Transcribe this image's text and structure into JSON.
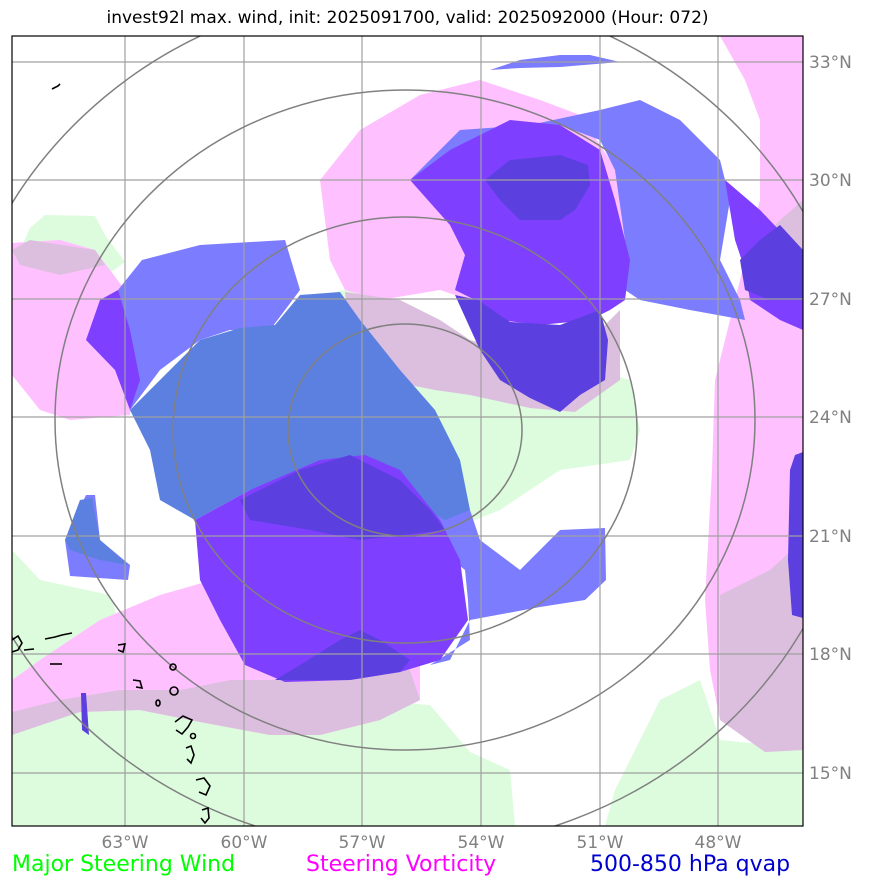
{
  "title": "invest92l max. wind, init: 2025091700, valid: 2025092000 (Hour: 072)",
  "map": {
    "lat_labels": [
      "33°N",
      "30°N",
      "27°N",
      "24°N",
      "21°N",
      "18°N",
      "15°N"
    ],
    "lon_labels": [
      "63°W",
      "60°W",
      "57°W",
      "54°W",
      "51°W",
      "48°W"
    ],
    "extent": {
      "lon_min": -65.8,
      "lon_max": -46.0,
      "lat_min": 13.7,
      "lat_max": 33.7
    }
  },
  "legend": {
    "wind": {
      "label": "Major Steering Wind",
      "color": "#00ff00"
    },
    "vorticity": {
      "label": "Steering Vorticity",
      "color": "#ff00ff"
    },
    "qvap": {
      "label": "500-850 hPa qvap",
      "color": "#0000cc"
    }
  },
  "colors": {
    "wind_fill": "#ddfcdd",
    "vorticity_fill": "#ffc0ff",
    "overlap_fill": "#dcbfdf",
    "qvap_light": "#7c7cff",
    "qvap_mid": "#7f3fff",
    "qvap_dark": "#5b3fdf",
    "qvap_on_wind": "#5b80e0",
    "grid": "#999999",
    "range_ring": "#808080",
    "coast": "#000000"
  }
}
